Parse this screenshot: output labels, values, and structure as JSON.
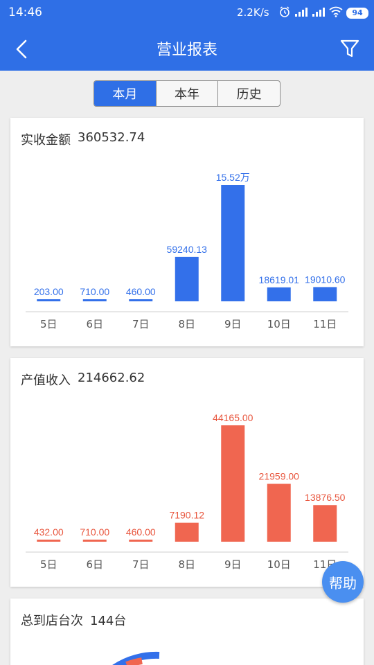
{
  "status_bar": {
    "time": "14:46",
    "speed": "2.2K/s",
    "battery": "94",
    "icons": [
      "alarm-icon",
      "signal-icon",
      "signal-icon",
      "wifi-icon",
      "battery-icon"
    ]
  },
  "app_bar": {
    "title": "营业报表",
    "back_icon": "back-arrow-icon",
    "filter_icon": "filter-icon"
  },
  "tabs": [
    {
      "label": "本月",
      "active": true
    },
    {
      "label": "本年",
      "active": false
    },
    {
      "label": "历史",
      "active": false
    }
  ],
  "cards": {
    "received": {
      "label": "实收金额",
      "value": "360532.74"
    },
    "production": {
      "label": "产值收入",
      "value": "214662.62"
    },
    "visits": {
      "label": "总到店台次",
      "value": "144台"
    }
  },
  "help_button": {
    "label": "帮助"
  },
  "colors": {
    "primary": "#2f6fe6",
    "bar_blue": "#3370ea",
    "bar_red": "#f06650",
    "label_red": "#e8553d",
    "help": "#4a8ff0"
  },
  "chart_data": [
    {
      "type": "bar",
      "title": "实收金额 360532.74",
      "categories": [
        "5日",
        "6日",
        "7日",
        "8日",
        "9日",
        "10日",
        "11日"
      ],
      "values": [
        203.0,
        710.0,
        460.0,
        59240.13,
        155200,
        18619.01,
        19010.6
      ],
      "data_labels": [
        "203.00",
        "710.00",
        "460.00",
        "59240.13",
        "15.52万",
        "18619.01",
        "19010.60"
      ],
      "ylim": [
        0,
        155200
      ],
      "grid": false,
      "color": "#3370ea"
    },
    {
      "type": "bar",
      "title": "产值收入 214662.62",
      "categories": [
        "5日",
        "6日",
        "7日",
        "8日",
        "9日",
        "10日",
        "11日"
      ],
      "values": [
        432.0,
        710.0,
        460.0,
        7190.12,
        44165.0,
        21959.0,
        13876.5
      ],
      "data_labels": [
        "432.00",
        "710.00",
        "460.00",
        "7190.12",
        "44165.00",
        "21959.00",
        "13876.50"
      ],
      "ylim": [
        0,
        44165
      ],
      "grid": false,
      "color": "#f06650"
    }
  ]
}
